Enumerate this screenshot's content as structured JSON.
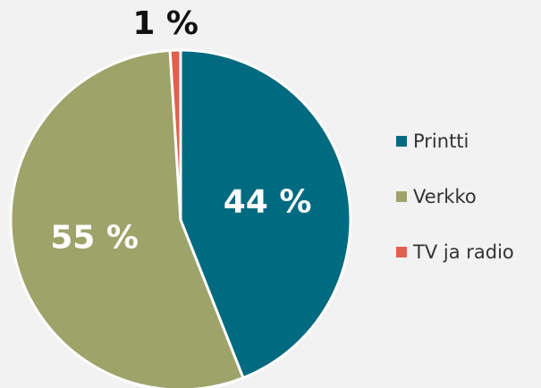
{
  "chart_data": {
    "type": "pie",
    "categories": [
      "Printti",
      "Verkko",
      "TV ja radio"
    ],
    "values": [
      44,
      55,
      1
    ],
    "value_labels": [
      "44 %",
      "55 %",
      "1 %"
    ],
    "colors": [
      "#006a80",
      "#9ea36a",
      "#e0604f"
    ],
    "legend": "right"
  }
}
